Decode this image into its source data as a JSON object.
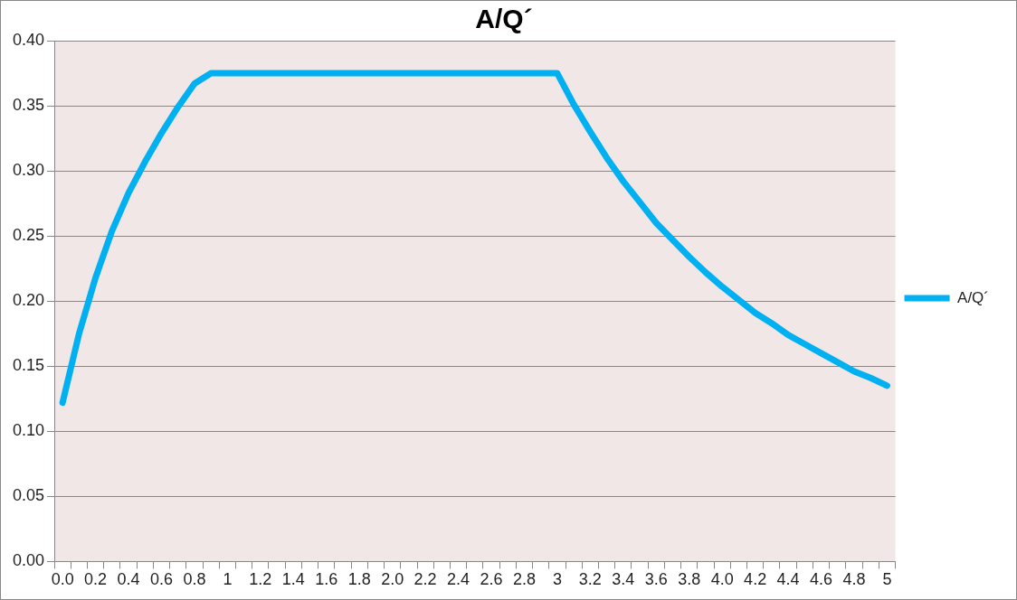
{
  "chart_data": {
    "type": "line",
    "title": "A/Q´",
    "categories": [
      "0.0",
      null,
      "0.2",
      null,
      "0.4",
      null,
      "0.6",
      null,
      "0.8",
      null,
      "1",
      null,
      "1.2",
      null,
      "1.4",
      null,
      "1.6",
      null,
      "1.8",
      null,
      "2.0",
      null,
      "2.2",
      null,
      "2.4",
      null,
      "2.6",
      null,
      "2.8",
      null,
      "3",
      null,
      "3.2",
      null,
      "3.4",
      null,
      "3.6",
      null,
      "3.8",
      null,
      "4.0",
      null,
      "4.2",
      null,
      "4.4",
      null,
      "4.6",
      null,
      "4.8",
      null,
      "5"
    ],
    "series": [
      {
        "name": "A/Q´",
        "color": "#00b0f0",
        "values": [
          0.122,
          0.175,
          0.218,
          0.254,
          0.283,
          0.307,
          0.329,
          0.349,
          0.367,
          0.375,
          0.375,
          0.375,
          0.375,
          0.375,
          0.375,
          0.375,
          0.375,
          0.375,
          0.375,
          0.375,
          0.375,
          0.375,
          0.375,
          0.375,
          0.375,
          0.375,
          0.375,
          0.375,
          0.375,
          0.375,
          0.375,
          0.351,
          0.33,
          0.31,
          0.292,
          0.276,
          0.26,
          0.247,
          0.234,
          0.222,
          0.211,
          0.201,
          0.191,
          0.183,
          0.174,
          0.167,
          0.16,
          0.153,
          0.146,
          0.141,
          0.135
        ]
      }
    ],
    "ylim": [
      0,
      0.4
    ],
    "yticks": [
      {
        "value": 0,
        "label": "0.00"
      },
      {
        "value": 0.05,
        "label": "0.05"
      },
      {
        "value": 0.1,
        "label": "0.10"
      },
      {
        "value": 0.15,
        "label": "0.15"
      },
      {
        "value": 0.2,
        "label": "0.20"
      },
      {
        "value": 0.25,
        "label": "0.25"
      },
      {
        "value": 0.3,
        "label": "0.30"
      },
      {
        "value": 0.35,
        "label": "0.35"
      },
      {
        "value": 0.4,
        "label": "0.40"
      }
    ],
    "grid": "y",
    "legend": "right",
    "marker": "none",
    "line_style": "solid"
  }
}
